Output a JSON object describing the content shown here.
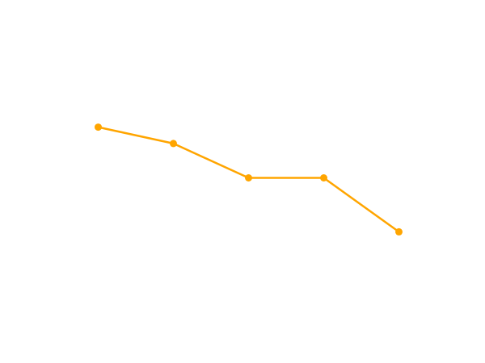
{
  "chart_data": {
    "type": "line",
    "title": "",
    "xlabel": "",
    "ylabel": "",
    "grid": false,
    "legend": "none",
    "x": [
      1,
      2,
      3,
      4,
      5
    ],
    "series": [
      {
        "values": [
          0.82,
          0.72,
          0.51,
          0.51,
          0.18
        ],
        "color": "#FFA500"
      }
    ],
    "xlim": [
      0.5,
      5.5
    ],
    "ylim": [
      -0.4,
      1.4
    ]
  }
}
